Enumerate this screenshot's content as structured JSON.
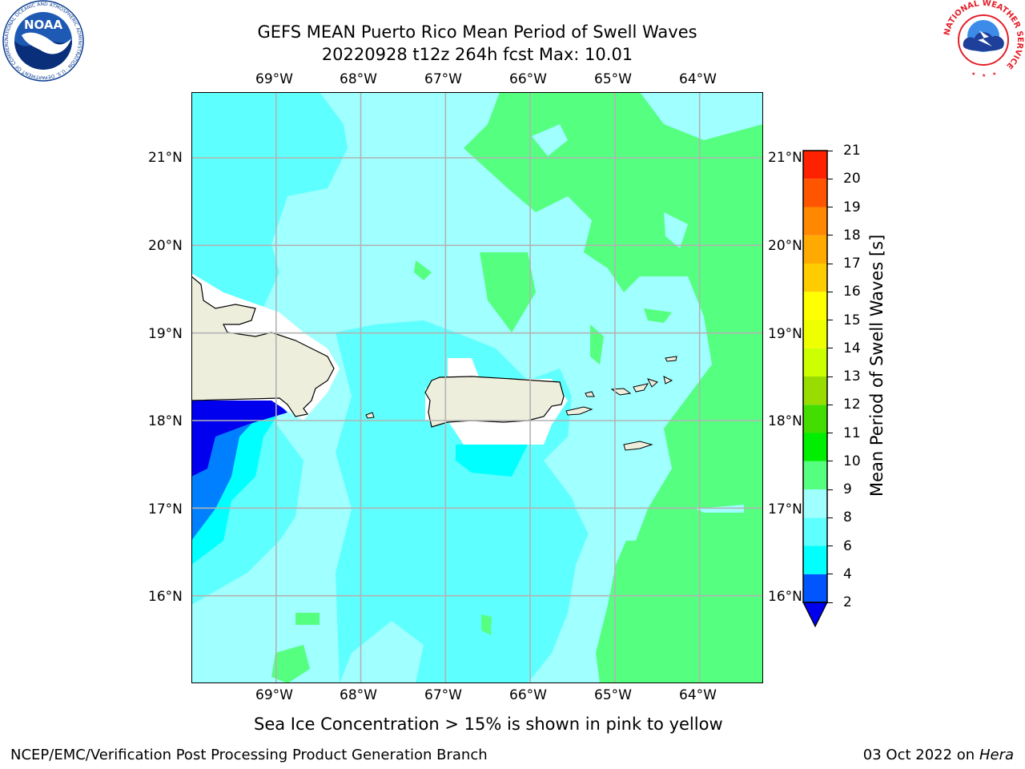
{
  "title": {
    "line1": "GEFS MEAN Puerto Rico Mean Period of Swell Waves",
    "line2": "20220928 t12z 264h fcst   Max: 10.01"
  },
  "logos": {
    "noaa": "NOAA",
    "noaa_ring": "NATIONAL OCEANIC AND ATMOSPHERIC ADMINISTRATION · U.S. DEPARTMENT OF COMMERCE ·",
    "nws_ring": "NATIONAL WEATHER SERVICE"
  },
  "map": {
    "lon_labels": [
      "69°W",
      "68°W",
      "67°W",
      "66°W",
      "65°W",
      "64°W"
    ],
    "lat_labels": [
      "21°N",
      "20°N",
      "19°N",
      "18°N",
      "17°N",
      "16°N"
    ],
    "extent": {
      "lon": [
        -70.0,
        -63.25
      ],
      "lat": [
        15.0,
        21.75
      ]
    },
    "land_color": "#eeeedd",
    "grid_color": "#b3b3b3"
  },
  "colorbar": {
    "label": "Mean Period of Swell Waves [s]",
    "ticks": [
      "2",
      "4",
      "6",
      "8",
      "9",
      "10",
      "11",
      "12",
      "13",
      "14",
      "15",
      "16",
      "17",
      "18",
      "19",
      "20",
      "21"
    ],
    "colors": [
      "#0055ff",
      "#00ffff",
      "#5effff",
      "#a0ffff",
      "#55ff80",
      "#00ee00",
      "#44dd00",
      "#99dd00",
      "#ccff00",
      "#eeff00",
      "#ffff00",
      "#ffcc00",
      "#ffaa00",
      "#ff8800",
      "#ff5500",
      "#ff2200"
    ],
    "under_color": "#0000ee",
    "over_color": "#ff0000"
  },
  "caption": "Sea Ice Concentration > 15% is shown in pink to yellow",
  "footer": {
    "left": "NCEP/EMC/Verification Post Processing Product Generation Branch",
    "date": "03 Oct 2022 on ",
    "machine": "Hera"
  }
}
